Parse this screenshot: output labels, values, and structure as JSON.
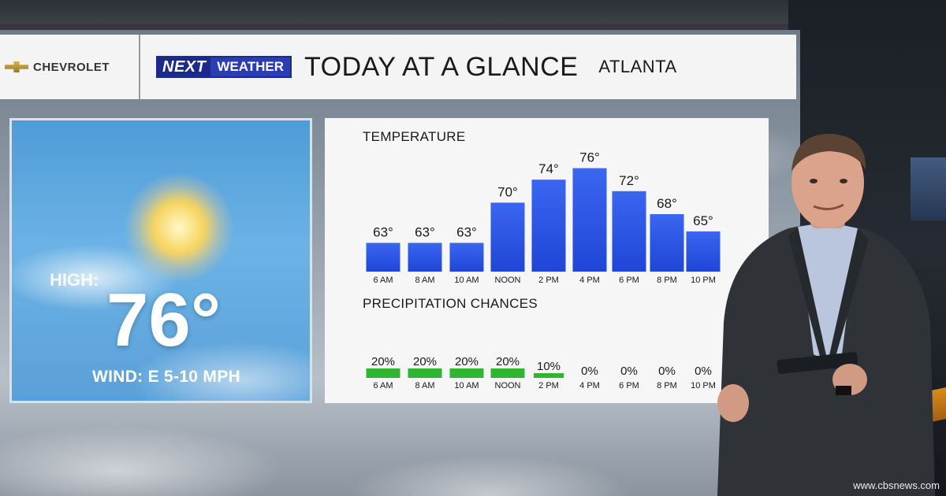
{
  "header": {
    "sponsor": "CHEVROLET",
    "brand_next": "NEXT",
    "brand_weather": "WEATHER",
    "title": "TODAY AT A GLANCE",
    "city": "ATLANTA"
  },
  "summary": {
    "high_label": "HIGH:",
    "high_value": "76°",
    "wind": "WIND: E 5-10 MPH"
  },
  "icons": {
    "sponsor_logo": "bowtie-icon",
    "sky": "partly-sunny-icon"
  },
  "colors": {
    "temp_bar": "#1f46d6",
    "precip_bar": "#2fb531"
  },
  "footer": {
    "credit": "www.cbsnews.com"
  },
  "chart_data": [
    {
      "type": "bar",
      "title": "TEMPERATURE",
      "categories": [
        "6 AM",
        "8 AM",
        "10 AM",
        "NOON",
        "2 PM",
        "4 PM",
        "6 PM",
        "8 PM",
        "10 PM"
      ],
      "values": [
        63,
        63,
        63,
        70,
        74,
        76,
        72,
        68,
        65
      ],
      "value_labels": [
        "63°",
        "63°",
        "63°",
        "70°",
        "74°",
        "76°",
        "72°",
        "68°",
        "65°"
      ],
      "unit": "°F",
      "grid": false
    },
    {
      "type": "bar",
      "title": "PRECIPITATION CHANCES",
      "categories": [
        "6 AM",
        "8 AM",
        "10 AM",
        "NOON",
        "2 PM",
        "4 PM",
        "6 PM",
        "8 PM",
        "10 PM"
      ],
      "values": [
        20,
        20,
        20,
        20,
        10,
        0,
        0,
        0,
        0
      ],
      "value_labels": [
        "20%",
        "20%",
        "20%",
        "20%",
        "10%",
        "0%",
        "0%",
        "0%",
        "0%"
      ],
      "unit": "%",
      "ylim": [
        0,
        100
      ],
      "grid": false
    }
  ]
}
